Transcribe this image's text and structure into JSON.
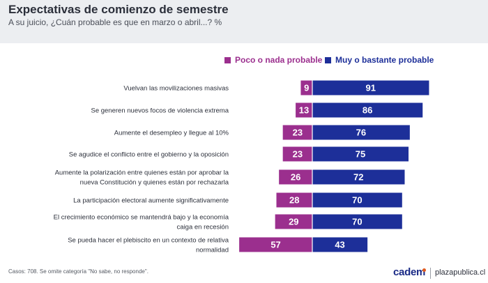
{
  "header": {
    "title": "Expectativas de comienzo de semestre",
    "subtitle": "A su juicio, ¿Cuán probable es que en marzo o abril...? %"
  },
  "colors": {
    "poco": "#9b2f8e",
    "muy": "#1d2f99",
    "header_bg": "#eceef1",
    "label_text": "#2b2f3a"
  },
  "legend": [
    {
      "label": "Poco o nada probable",
      "color": "#9b2f8e"
    },
    {
      "label": "Muy o bastante probable",
      "color": "#1d2f99"
    }
  ],
  "chart_data": {
    "type": "bar",
    "orientation": "horizontal-diverging",
    "categories": [
      [
        "Vuelvan las movilizaciones masivas"
      ],
      [
        "Se generen nuevos focos de violencia extrema"
      ],
      [
        "Aumente el desempleo y llegue al 10%"
      ],
      [
        "Se agudice el conflicto entre el gobierno y la oposición"
      ],
      [
        "Aumente la polarización entre quienes están por aprobar la",
        "nueva Constitución y quienes están por rechazarla"
      ],
      [
        "La participación electoral aumente significativamente"
      ],
      [
        "El crecimiento económico se mantendrá bajo y la economía",
        "caiga en recesión"
      ],
      [
        "Se pueda hacer el plebiscito en un contexto de relativa",
        "normalidad"
      ]
    ],
    "series": [
      {
        "name": "Poco o nada probable",
        "values": [
          9,
          13,
          23,
          23,
          26,
          28,
          29,
          57
        ]
      },
      {
        "name": "Muy o bastante probable",
        "values": [
          91,
          86,
          76,
          75,
          72,
          70,
          70,
          43
        ]
      }
    ],
    "legend_position": "top-right",
    "grid": false
  },
  "footer": {
    "note": "Casos: 708. Se omite categoría \"No sabe, no responde\".",
    "brand": "cadem",
    "brand_dot_color": "#e05a1e",
    "site": "plazapublica.cl"
  }
}
